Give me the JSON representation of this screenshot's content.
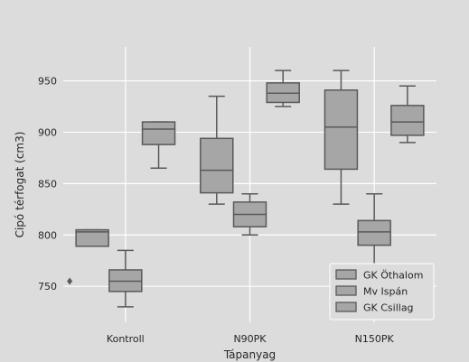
{
  "chart_data": {
    "type": "box",
    "xlabel": "Tápanyag",
    "ylabel": "Cipó térfogat (cm3)",
    "categories": [
      "Kontroll",
      "N90PK",
      "N150PK"
    ],
    "ylim": [
      715,
      983
    ],
    "yticks": [
      750,
      800,
      850,
      900,
      950
    ],
    "grid": true,
    "legend_position": "lower-right",
    "series": [
      {
        "name": "GK Öthalom",
        "boxes": [
          {
            "whisker_low": 789,
            "q1": 789,
            "median": 803,
            "q3": 805,
            "whisker_high": 805,
            "outliers": [
              755
            ]
          },
          {
            "whisker_low": 830,
            "q1": 841,
            "median": 863,
            "q3": 894,
            "whisker_high": 935,
            "outliers": []
          },
          {
            "whisker_low": 830,
            "q1": 864,
            "median": 905,
            "q3": 941,
            "whisker_high": 960,
            "outliers": []
          }
        ]
      },
      {
        "name": "Mv Ispán",
        "boxes": [
          {
            "whisker_low": 730,
            "q1": 745,
            "median": 755,
            "q3": 766,
            "whisker_high": 785,
            "outliers": []
          },
          {
            "whisker_low": 800,
            "q1": 808,
            "median": 820,
            "q3": 832,
            "whisker_high": 840,
            "outliers": []
          },
          {
            "whisker_low": 765,
            "q1": 790,
            "median": 803,
            "q3": 814,
            "whisker_high": 840,
            "outliers": []
          }
        ]
      },
      {
        "name": "GK Csillag",
        "boxes": [
          {
            "whisker_low": 865,
            "q1": 888,
            "median": 903,
            "q3": 910,
            "whisker_high": 910,
            "outliers": []
          },
          {
            "whisker_low": 925,
            "q1": 929,
            "median": 938,
            "q3": 948,
            "whisker_high": 960,
            "outliers": []
          },
          {
            "whisker_low": 890,
            "q1": 897,
            "median": 910,
            "q3": 926,
            "whisker_high": 945,
            "outliers": []
          }
        ]
      }
    ]
  },
  "colors": {
    "figure_background": "#dcdcdc",
    "plot_background": "#dcdcdc",
    "grid": "#ffffff",
    "box_fill": "#a6a6a6",
    "box_edge": "#595959",
    "legend_background": "#dcdcdc",
    "legend_border": "#ffffff"
  }
}
